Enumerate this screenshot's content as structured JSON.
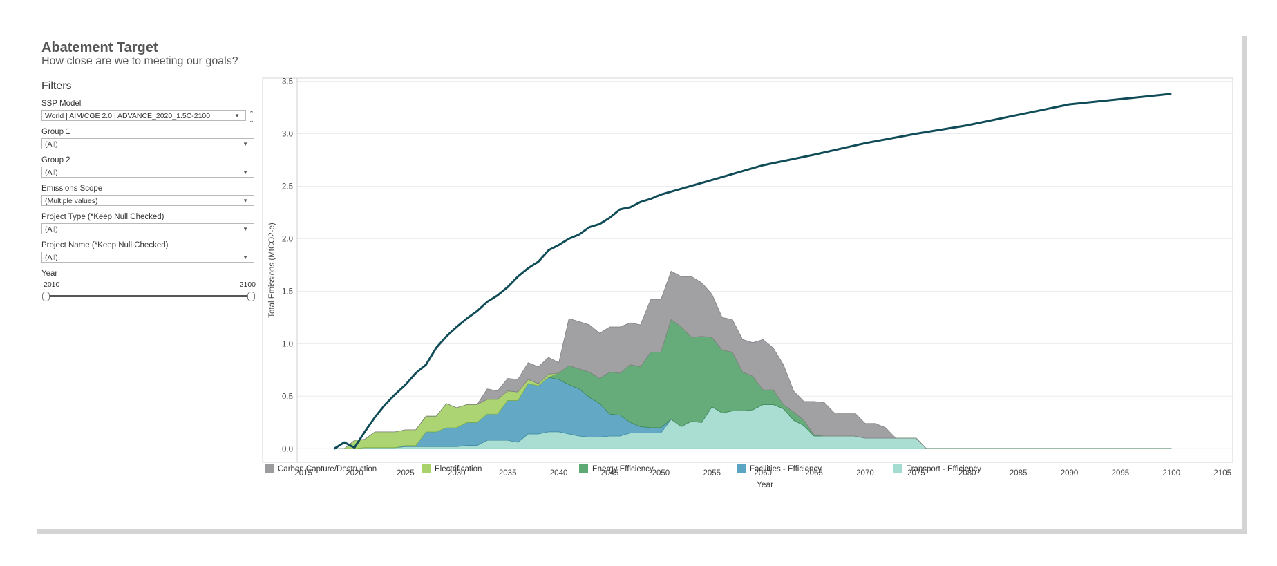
{
  "header": {
    "title": "Abatement Target",
    "subtitle": "How close are we to meeting our goals?"
  },
  "filters": {
    "heading": "Filters",
    "ssp_model": {
      "label": "SSP Model",
      "value": "World | AIM/CGE 2.0 | ADVANCE_2020_1.5C-2100"
    },
    "group1": {
      "label": "Group 1",
      "value": "(All)"
    },
    "group2": {
      "label": "Group 2",
      "value": "(All)"
    },
    "emissions_scope": {
      "label": "Emissions Scope",
      "value": "(Multiple values)"
    },
    "project_type": {
      "label": "Project Type (*Keep Null Checked)",
      "value": "(All)"
    },
    "project_name": {
      "label": "Project Name (*Keep Null Checked)",
      "value": "(All)"
    },
    "year": {
      "label": "Year",
      "min": "2010",
      "max": "2100"
    }
  },
  "icons": {
    "dropdown": "chevron-down-icon",
    "stepper": "up-down-stepper-icon"
  },
  "chart_data": {
    "type": "area",
    "xlabel": "Year",
    "ylabel": "Total Emissions (MtCO2-e)",
    "xlim": [
      2011,
      2106
    ],
    "ylim": [
      -0.13,
      3.53
    ],
    "x_ticks": [
      2015,
      2020,
      2025,
      2030,
      2035,
      2040,
      2045,
      2050,
      2055,
      2060,
      2065,
      2070,
      2075,
      2080,
      2085,
      2090,
      2095,
      2100,
      2105
    ],
    "y_ticks": [
      0.0,
      0.5,
      1.0,
      1.5,
      2.0,
      2.5,
      3.0,
      3.5
    ],
    "grid": "horizontal",
    "legend_position": "bottom",
    "x": [
      2018,
      2019,
      2020,
      2021,
      2022,
      2023,
      2024,
      2025,
      2026,
      2027,
      2028,
      2029,
      2030,
      2031,
      2032,
      2033,
      2034,
      2035,
      2036,
      2037,
      2038,
      2039,
      2040,
      2041,
      2042,
      2043,
      2044,
      2045,
      2046,
      2047,
      2048,
      2049,
      2050,
      2051,
      2052,
      2053,
      2054,
      2055,
      2056,
      2057,
      2058,
      2059,
      2060,
      2061,
      2062,
      2063,
      2064,
      2065,
      2066,
      2067,
      2068,
      2069,
      2070,
      2071,
      2072,
      2073,
      2074,
      2075,
      2076,
      2077,
      2078,
      2079,
      2080,
      2085,
      2090,
      2095,
      2100
    ],
    "stacked_series": [
      {
        "name": "Transport - Efficiency",
        "color": "#a5dcd1",
        "stroke": "#6fb8a8",
        "values": [
          0,
          0,
          0,
          0.01,
          0.01,
          0.01,
          0.01,
          0.02,
          0.02,
          0.02,
          0.02,
          0.02,
          0.02,
          0.03,
          0.03,
          0.08,
          0.08,
          0.08,
          0.06,
          0.14,
          0.14,
          0.16,
          0.16,
          0.14,
          0.12,
          0.11,
          0.11,
          0.12,
          0.12,
          0.15,
          0.15,
          0.15,
          0.15,
          0.28,
          0.21,
          0.26,
          0.25,
          0.4,
          0.34,
          0.36,
          0.36,
          0.37,
          0.42,
          0.42,
          0.38,
          0.27,
          0.22,
          0.12,
          0.12,
          0.12,
          0.12,
          0.12,
          0.1,
          0.1,
          0.1,
          0.1,
          0.1,
          0.1,
          0,
          0,
          0,
          0,
          0,
          0,
          0,
          0,
          0
        ]
      },
      {
        "name": "Facilities - Efficiency",
        "color": "#5ba4c2",
        "stroke": "#3f87a6",
        "values": [
          0,
          0,
          0,
          0,
          0,
          0,
          0,
          0.01,
          0.01,
          0.14,
          0.14,
          0.18,
          0.18,
          0.22,
          0.22,
          0.25,
          0.25,
          0.38,
          0.4,
          0.48,
          0.46,
          0.52,
          0.5,
          0.47,
          0.45,
          0.38,
          0.32,
          0.21,
          0.2,
          0.1,
          0.06,
          0.05,
          0.05,
          0,
          0,
          0,
          0,
          0,
          0,
          0,
          0,
          0,
          0,
          0,
          0,
          0,
          0,
          0,
          0,
          0,
          0,
          0,
          0,
          0,
          0,
          0,
          0,
          0,
          0,
          0,
          0,
          0,
          0,
          0,
          0,
          0,
          0
        ]
      },
      {
        "name": "Energy Efficiency",
        "color": "#5ea873",
        "stroke": "#3e8855",
        "values": [
          0,
          0,
          0,
          0,
          0,
          0,
          0,
          0,
          0,
          0,
          0,
          0,
          0,
          0,
          0,
          0,
          0,
          0,
          0,
          0,
          0,
          0,
          0.06,
          0.18,
          0.19,
          0.24,
          0.24,
          0.4,
          0.4,
          0.55,
          0.57,
          0.72,
          0.72,
          0.95,
          0.95,
          0.8,
          0.82,
          0.66,
          0.6,
          0.56,
          0.37,
          0.32,
          0.14,
          0.14,
          0.04,
          0.08,
          0.05,
          0.01,
          0,
          0,
          0,
          0,
          0,
          0,
          0,
          0,
          0,
          0,
          0,
          0,
          0,
          0,
          0,
          0,
          0,
          0,
          0
        ]
      },
      {
        "name": "Electrification",
        "color": "#a9d26b",
        "stroke": "#86b548",
        "values": [
          0,
          0,
          0.08,
          0.08,
          0.15,
          0.15,
          0.15,
          0.15,
          0.15,
          0.15,
          0.15,
          0.23,
          0.19,
          0.17,
          0.17,
          0.14,
          0.14,
          0.09,
          0.08,
          0.04,
          0.02,
          0.03,
          0,
          0,
          0,
          0,
          0,
          0,
          0,
          0,
          0,
          0,
          0,
          0,
          0,
          0,
          0,
          0,
          0,
          0,
          0,
          0,
          0,
          0,
          0,
          0,
          0,
          0,
          0,
          0,
          0,
          0,
          0,
          0,
          0,
          0,
          0,
          0,
          0,
          0,
          0,
          0,
          0,
          0,
          0,
          0,
          0
        ]
      },
      {
        "name": "Carbon Capture/Destruction",
        "color": "#9c9c9f",
        "stroke": "#7f7f82",
        "values": [
          0,
          0,
          0,
          0,
          0,
          0,
          0,
          0,
          0,
          0,
          0,
          0,
          0,
          0,
          0,
          0.1,
          0.08,
          0.12,
          0.12,
          0.16,
          0.16,
          0.16,
          0.1,
          0.45,
          0.45,
          0.45,
          0.43,
          0.43,
          0.44,
          0.4,
          0.4,
          0.5,
          0.5,
          0.46,
          0.48,
          0.58,
          0.51,
          0.41,
          0.31,
          0.31,
          0.31,
          0.32,
          0.48,
          0.4,
          0.38,
          0.2,
          0.18,
          0.32,
          0.32,
          0.22,
          0.22,
          0.22,
          0.14,
          0.14,
          0.1,
          0,
          0,
          0,
          0,
          0,
          0,
          0,
          0,
          0,
          0,
          0,
          0
        ]
      }
    ],
    "line_series": {
      "name": "Abatement Target",
      "color": "#0f4c57",
      "x": [
        2018,
        2019,
        2020,
        2021,
        2022,
        2023,
        2024,
        2025,
        2026,
        2027,
        2028,
        2029,
        2030,
        2031,
        2032,
        2033,
        2034,
        2035,
        2036,
        2037,
        2038,
        2039,
        2040,
        2041,
        2042,
        2043,
        2044,
        2045,
        2046,
        2047,
        2048,
        2049,
        2050,
        2055,
        2060,
        2065,
        2070,
        2075,
        2080,
        2085,
        2090,
        2095,
        2100
      ],
      "values": [
        0,
        0.06,
        0.01,
        0.16,
        0.3,
        0.42,
        0.52,
        0.61,
        0.72,
        0.8,
        0.96,
        1.07,
        1.16,
        1.24,
        1.31,
        1.4,
        1.46,
        1.54,
        1.64,
        1.72,
        1.78,
        1.89,
        1.94,
        2.0,
        2.04,
        2.11,
        2.14,
        2.2,
        2.28,
        2.3,
        2.35,
        2.38,
        2.42,
        2.56,
        2.7,
        2.8,
        2.91,
        3.0,
        3.08,
        3.18,
        3.28,
        3.33,
        3.38
      ]
    },
    "legend": [
      {
        "label": "Carbon Capture/Destruction",
        "color": "#9c9c9f"
      },
      {
        "label": "Electrification",
        "color": "#a9d26b"
      },
      {
        "label": "Energy Efficiency",
        "color": "#5ea873"
      },
      {
        "label": "Facilities - Efficiency",
        "color": "#5ba4c2"
      },
      {
        "label": "Transport - Efficiency",
        "color": "#a5dcd1"
      }
    ]
  }
}
